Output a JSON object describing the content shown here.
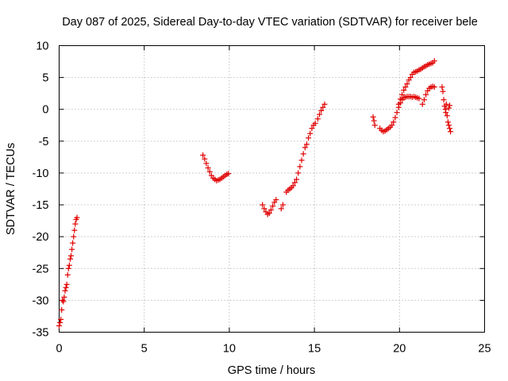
{
  "chart_data": {
    "type": "scatter",
    "title": "Day 087 of 2025, Sidereal Day-to-day VTEC variation (SDTVAR) for receiver bele",
    "xlabel": "GPS time / hours",
    "ylabel": "SDTVAR / TECUs",
    "xlim": [
      0,
      25
    ],
    "ylim": [
      -35,
      10
    ],
    "xticks": [
      0,
      5,
      10,
      15,
      20,
      25
    ],
    "yticks": [
      10,
      5,
      0,
      -5,
      -10,
      -15,
      -20,
      -25,
      -30,
      -35
    ],
    "grid": true,
    "marker": "+",
    "color": "#e00000",
    "series": [
      {
        "name": "SDTVAR",
        "points": [
          [
            0.0,
            -34.0
          ],
          [
            0.05,
            -33.5
          ],
          [
            0.1,
            -33.0
          ],
          [
            0.15,
            -31.5
          ],
          [
            0.2,
            -30.0
          ],
          [
            0.25,
            -30.2
          ],
          [
            0.3,
            -29.5
          ],
          [
            0.35,
            -28.5
          ],
          [
            0.4,
            -28.0
          ],
          [
            0.45,
            -27.5
          ],
          [
            0.5,
            -26.0
          ],
          [
            0.55,
            -25.0
          ],
          [
            0.6,
            -24.5
          ],
          [
            0.65,
            -23.5
          ],
          [
            0.7,
            -23.0
          ],
          [
            0.75,
            -22.0
          ],
          [
            0.8,
            -21.0
          ],
          [
            0.85,
            -20.0
          ],
          [
            0.9,
            -19.0
          ],
          [
            0.95,
            -18.0
          ],
          [
            1.0,
            -17.3
          ],
          [
            1.05,
            -17.0
          ],
          [
            8.45,
            -7.2
          ],
          [
            8.55,
            -7.8
          ],
          [
            8.65,
            -8.5
          ],
          [
            8.75,
            -9.2
          ],
          [
            8.85,
            -9.8
          ],
          [
            8.95,
            -10.4
          ],
          [
            9.05,
            -10.8
          ],
          [
            9.15,
            -11.0
          ],
          [
            9.25,
            -11.2
          ],
          [
            9.35,
            -11.1
          ],
          [
            9.45,
            -11.0
          ],
          [
            9.55,
            -10.8
          ],
          [
            9.65,
            -10.6
          ],
          [
            9.75,
            -10.4
          ],
          [
            9.85,
            -10.2
          ],
          [
            9.95,
            -10.1
          ],
          [
            11.95,
            -15.0
          ],
          [
            12.05,
            -15.6
          ],
          [
            12.15,
            -16.1
          ],
          [
            12.25,
            -16.5
          ],
          [
            12.35,
            -16.3
          ],
          [
            12.45,
            -15.8
          ],
          [
            12.55,
            -15.2
          ],
          [
            12.65,
            -14.6
          ],
          [
            12.75,
            -14.2
          ],
          [
            13.05,
            -15.6
          ],
          [
            13.15,
            -15.0
          ],
          [
            13.35,
            -13.0
          ],
          [
            13.45,
            -12.7
          ],
          [
            13.55,
            -12.5
          ],
          [
            13.65,
            -12.3
          ],
          [
            13.75,
            -12.0
          ],
          [
            13.85,
            -11.5
          ],
          [
            13.95,
            -11.0
          ],
          [
            14.05,
            -10.0
          ],
          [
            14.15,
            -9.0
          ],
          [
            14.25,
            -8.0
          ],
          [
            14.35,
            -7.0
          ],
          [
            14.45,
            -6.0
          ],
          [
            14.55,
            -5.5
          ],
          [
            14.65,
            -4.5
          ],
          [
            14.75,
            -3.8
          ],
          [
            14.85,
            -3.0
          ],
          [
            14.95,
            -2.5
          ],
          [
            15.05,
            -2.2
          ],
          [
            15.2,
            -1.5
          ],
          [
            15.3,
            -0.8
          ],
          [
            15.4,
            -0.2
          ],
          [
            15.5,
            0.3
          ],
          [
            15.6,
            0.8
          ],
          [
            18.45,
            -1.2
          ],
          [
            18.5,
            -1.8
          ],
          [
            18.55,
            -2.5
          ],
          [
            18.85,
            -3.0
          ],
          [
            18.95,
            -3.3
          ],
          [
            19.05,
            -3.5
          ],
          [
            19.15,
            -3.4
          ],
          [
            19.25,
            -3.2
          ],
          [
            19.35,
            -3.0
          ],
          [
            19.45,
            -2.8
          ],
          [
            19.55,
            -2.5
          ],
          [
            19.65,
            -2.0
          ],
          [
            19.75,
            -1.3
          ],
          [
            19.85,
            -0.5
          ],
          [
            19.95,
            0.3
          ],
          [
            20.05,
            1.0
          ],
          [
            20.15,
            1.5
          ],
          [
            20.25,
            1.8
          ],
          [
            20.35,
            1.9
          ],
          [
            20.45,
            2.0
          ],
          [
            20.55,
            2.0
          ],
          [
            20.65,
            2.0
          ],
          [
            20.75,
            1.9
          ],
          [
            20.85,
            2.0
          ],
          [
            20.95,
            1.9
          ],
          [
            21.05,
            1.8
          ],
          [
            21.15,
            1.7
          ],
          [
            21.35,
            0.8
          ],
          [
            21.45,
            1.5
          ],
          [
            21.55,
            2.3
          ],
          [
            21.65,
            2.9
          ],
          [
            21.75,
            3.3
          ],
          [
            21.85,
            3.5
          ],
          [
            21.95,
            3.6
          ],
          [
            22.05,
            3.5
          ],
          [
            19.95,
            0.8
          ],
          [
            20.05,
            1.6
          ],
          [
            20.15,
            2.3
          ],
          [
            20.25,
            3.0
          ],
          [
            20.35,
            3.5
          ],
          [
            20.45,
            4.0
          ],
          [
            20.55,
            4.6
          ],
          [
            20.65,
            5.0
          ],
          [
            20.75,
            5.5
          ],
          [
            20.85,
            5.8
          ],
          [
            20.95,
            5.9
          ],
          [
            21.05,
            6.0
          ],
          [
            21.15,
            6.2
          ],
          [
            21.25,
            6.3
          ],
          [
            21.35,
            6.5
          ],
          [
            21.45,
            6.7
          ],
          [
            21.55,
            6.8
          ],
          [
            21.65,
            7.0
          ],
          [
            21.75,
            7.1
          ],
          [
            21.85,
            7.2
          ],
          [
            21.95,
            7.3
          ],
          [
            22.05,
            7.6
          ],
          [
            22.5,
            3.5
          ],
          [
            22.55,
            2.8
          ],
          [
            22.6,
            1.5
          ],
          [
            22.65,
            0.5
          ],
          [
            22.7,
            0.0
          ],
          [
            22.72,
            -0.5
          ],
          [
            22.75,
            0.8
          ],
          [
            22.8,
            -1.0
          ],
          [
            22.85,
            -2.0
          ],
          [
            22.9,
            -2.5
          ],
          [
            22.95,
            -3.0
          ],
          [
            23.0,
            -3.5
          ],
          [
            22.9,
            0.2
          ],
          [
            22.95,
            0.6
          ]
        ]
      }
    ]
  }
}
